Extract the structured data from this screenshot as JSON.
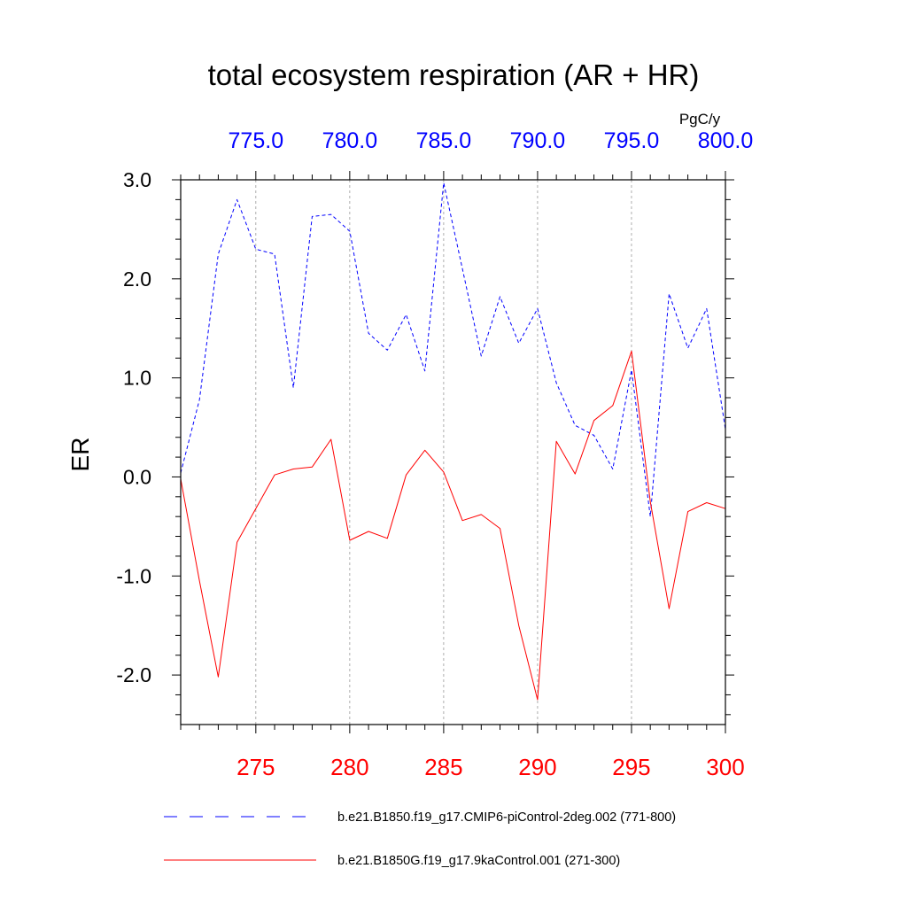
{
  "chart_data": {
    "type": "line",
    "title": "total ecosystem respiration (AR + HR)",
    "ylabel": "ER",
    "units": "PgC/y",
    "ylim": [
      -2.5,
      3.0
    ],
    "yticks": [
      3.0,
      2.0,
      1.0,
      0.0,
      -1.0,
      -2.0
    ],
    "ytick_labels": [
      "3.0",
      "2.0",
      "1.0",
      "0.0",
      "-1.0",
      "-2.0"
    ],
    "bottom_axis": {
      "range": [
        271,
        300
      ],
      "ticks": [
        275,
        280,
        285,
        290,
        295,
        300
      ],
      "tick_labels": [
        "275",
        "280",
        "285",
        "290",
        "295",
        "300"
      ],
      "color": "#ff0000"
    },
    "top_axis": {
      "range": [
        771,
        800
      ],
      "ticks": [
        775,
        780,
        785,
        790,
        795,
        800
      ],
      "tick_labels": [
        "775.0",
        "780.0",
        "785.0",
        "790.0",
        "795.0",
        "800.0"
      ],
      "color": "#0000ff"
    },
    "grid": "vertical-dashed",
    "series": [
      {
        "name": "b.e21.B1850.f19_g17.CMIP6-piControl-2deg.002 (771-800)",
        "axis": "top",
        "color": "#0000ff",
        "style": "dashed",
        "x": [
          771,
          772,
          773,
          774,
          775,
          776,
          777,
          778,
          779,
          780,
          781,
          782,
          783,
          784,
          785,
          786,
          787,
          788,
          789,
          790,
          791,
          792,
          793,
          794,
          795,
          796,
          797,
          798,
          799,
          800
        ],
        "values": [
          0.04,
          0.78,
          2.25,
          2.8,
          2.3,
          2.25,
          0.9,
          2.63,
          2.65,
          2.48,
          1.45,
          1.28,
          1.64,
          1.07,
          2.97,
          2.1,
          1.22,
          1.82,
          1.35,
          1.7,
          0.95,
          0.52,
          0.42,
          0.08,
          1.08,
          -0.4,
          1.85,
          1.3,
          1.7,
          0.48
        ]
      },
      {
        "name": "b.e21.B1850G.f19_g17.9kaControl.001 (271-300)",
        "axis": "bottom",
        "color": "#ff0000",
        "style": "solid",
        "x": [
          271,
          272,
          273,
          274,
          275,
          276,
          277,
          278,
          279,
          280,
          281,
          282,
          283,
          284,
          285,
          286,
          287,
          288,
          289,
          290,
          291,
          292,
          293,
          294,
          295,
          296,
          297,
          298,
          299,
          300
        ],
        "values": [
          -0.02,
          -1.05,
          -2.02,
          -0.66,
          -0.32,
          0.02,
          0.08,
          0.1,
          0.38,
          -0.64,
          -0.55,
          -0.62,
          0.02,
          0.27,
          0.05,
          -0.44,
          -0.38,
          -0.52,
          -1.5,
          -2.25,
          0.36,
          0.03,
          0.57,
          0.72,
          1.27,
          -0.25,
          -1.33,
          -0.35,
          -0.26,
          -0.32
        ]
      }
    ],
    "legend_position": "bottom"
  }
}
